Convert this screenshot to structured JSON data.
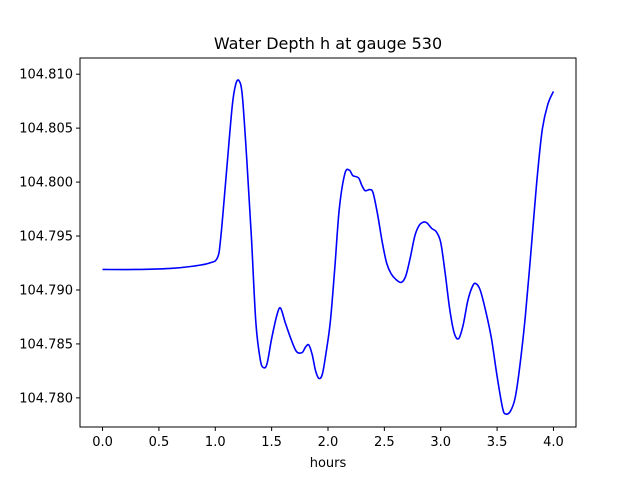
{
  "chart_data": {
    "type": "line",
    "title": "Water Depth h at gauge 530",
    "xlabel": "hours",
    "ylabel": "",
    "xlim": [
      -0.2,
      4.2
    ],
    "ylim": [
      104.7773,
      104.8115
    ],
    "xticks": [
      0.0,
      0.5,
      1.0,
      1.5,
      2.0,
      2.5,
      3.0,
      3.5,
      4.0
    ],
    "xtick_labels": [
      "0.0",
      "0.5",
      "1.0",
      "1.5",
      "2.0",
      "2.5",
      "3.0",
      "3.5",
      "4.0"
    ],
    "yticks": [
      104.78,
      104.785,
      104.79,
      104.795,
      104.8,
      104.805,
      104.81
    ],
    "ytick_labels": [
      "104.780",
      "104.785",
      "104.790",
      "104.795",
      "104.800",
      "104.805",
      "104.810"
    ],
    "grid": false,
    "series": [
      {
        "color": "#0000ff",
        "x": [
          0.0,
          0.3,
          0.6,
          0.8,
          0.95,
          1.02,
          1.05,
          1.1,
          1.15,
          1.18,
          1.21,
          1.24,
          1.28,
          1.32,
          1.36,
          1.4,
          1.43,
          1.46,
          1.5,
          1.55,
          1.58,
          1.62,
          1.67,
          1.72,
          1.77,
          1.8,
          1.83,
          1.86,
          1.89,
          1.92,
          1.95,
          1.98,
          2.02,
          2.06,
          2.1,
          2.15,
          2.19,
          2.22,
          2.27,
          2.3,
          2.33,
          2.37,
          2.4,
          2.44,
          2.48,
          2.52,
          2.56,
          2.6,
          2.65,
          2.69,
          2.73,
          2.77,
          2.81,
          2.85,
          2.88,
          2.92,
          2.96,
          3.0,
          3.04,
          3.08,
          3.12,
          3.16,
          3.2,
          3.24,
          3.28,
          3.31,
          3.35,
          3.4,
          3.45,
          3.5,
          3.55,
          3.58,
          3.62,
          3.66,
          3.7,
          3.75,
          3.8,
          3.85,
          3.9,
          3.95,
          4.0
        ],
        "y": [
          104.7919,
          104.7919,
          104.792,
          104.7922,
          104.7925,
          104.793,
          104.795,
          104.801,
          104.807,
          104.809,
          104.8094,
          104.808,
          104.802,
          104.795,
          104.787,
          104.7835,
          104.7828,
          104.7832,
          104.7855,
          104.7878,
          104.7883,
          104.787,
          104.7855,
          104.7843,
          104.7842,
          104.7847,
          104.7849,
          104.784,
          104.7825,
          104.7818,
          104.7822,
          104.784,
          104.787,
          104.792,
          104.7975,
          104.8008,
          104.8011,
          104.8006,
          104.8004,
          104.7997,
          104.7992,
          104.7993,
          104.799,
          104.797,
          104.7945,
          104.7925,
          104.7915,
          104.791,
          104.7907,
          104.7913,
          104.793,
          104.795,
          104.796,
          104.7963,
          104.7962,
          104.7957,
          104.7954,
          104.7944,
          104.7915,
          104.7882,
          104.786,
          104.7855,
          104.7868,
          104.789,
          104.7903,
          104.7906,
          104.79,
          104.788,
          104.7855,
          104.782,
          104.779,
          104.7785,
          104.7788,
          104.78,
          104.7828,
          104.7875,
          104.7935,
          104.7998,
          104.8048,
          104.8072,
          104.8084
        ]
      }
    ]
  }
}
